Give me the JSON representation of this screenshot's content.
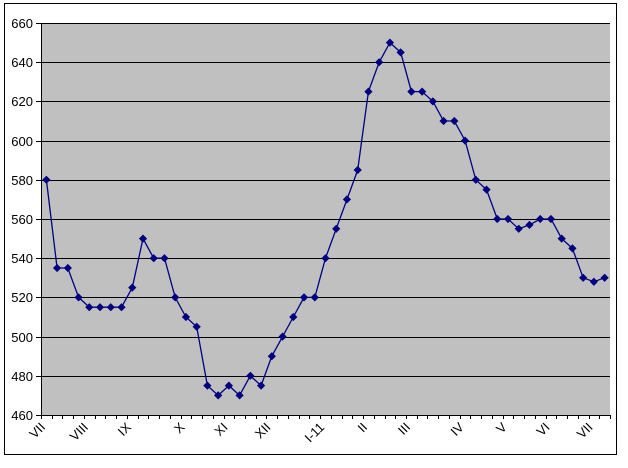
{
  "chart_data": {
    "type": "line",
    "title": "",
    "xlabel": "",
    "ylabel": "",
    "x_tick_labels": [
      "VII",
      "VIII",
      "IX",
      "X",
      "XI",
      "XII",
      "I-11",
      "II",
      "III",
      "IV",
      "V",
      "VI",
      "VII"
    ],
    "x_label_boundaries": [
      0,
      4,
      8,
      13,
      17,
      21,
      26,
      30,
      34,
      39,
      43,
      47,
      51
    ],
    "y_tick_labels": [
      "460",
      "480",
      "500",
      "520",
      "540",
      "560",
      "580",
      "600",
      "620",
      "640",
      "660"
    ],
    "values": [
      580,
      535,
      535,
      520,
      515,
      515,
      515,
      515,
      525,
      550,
      540,
      540,
      520,
      510,
      505,
      475,
      470,
      475,
      470,
      480,
      475,
      490,
      500,
      510,
      520,
      520,
      540,
      555,
      570,
      585,
      625,
      640,
      650,
      645,
      625,
      625,
      620,
      610,
      610,
      600,
      580,
      575,
      560,
      560,
      555,
      557,
      560,
      560,
      550,
      545,
      530,
      528,
      530
    ],
    "ylim": [
      460,
      660
    ],
    "y_step": 20,
    "grid": true,
    "legend": false,
    "marker": "diamond",
    "colors": {
      "line": "#000080",
      "marker": "#000080",
      "plot_bg": "#c0c0c0",
      "grid": "#000000",
      "axis": "#000000",
      "chart_bg": "#ffffff",
      "border": "#000000",
      "label": "#000000"
    }
  }
}
